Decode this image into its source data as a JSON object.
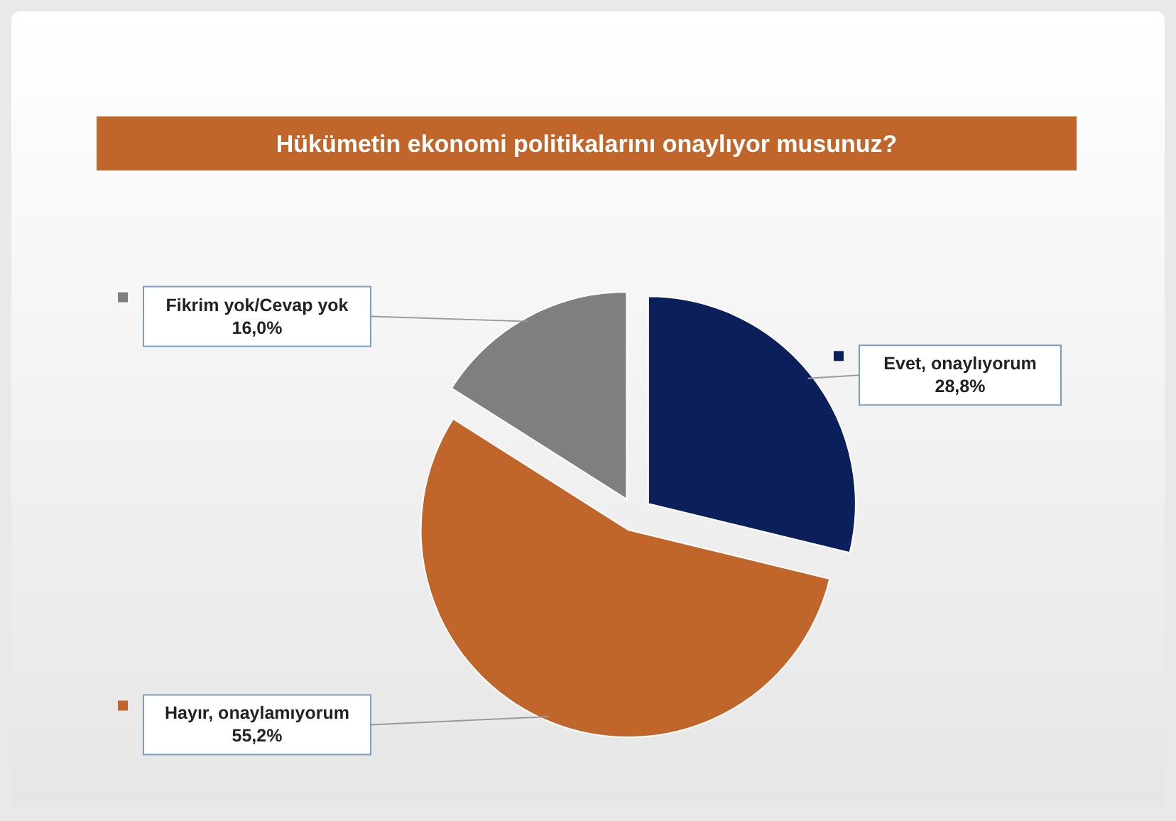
{
  "chart_data": {
    "type": "pie",
    "title": "Hükümetin ekonomi politikalarını onaylıyor musunuz?",
    "categories": [
      "Evet, onaylıyorum",
      "Hayır, onaylamıyorum",
      "Fikrim yok/Cevap yok"
    ],
    "values": [
      28.8,
      55.2,
      16.0
    ],
    "value_labels": [
      "28,8%",
      "55,2%",
      "16,0%"
    ],
    "colors": [
      "#0b1f5a",
      "#c0662a",
      "#7f7f7f"
    ],
    "legend": "left"
  }
}
